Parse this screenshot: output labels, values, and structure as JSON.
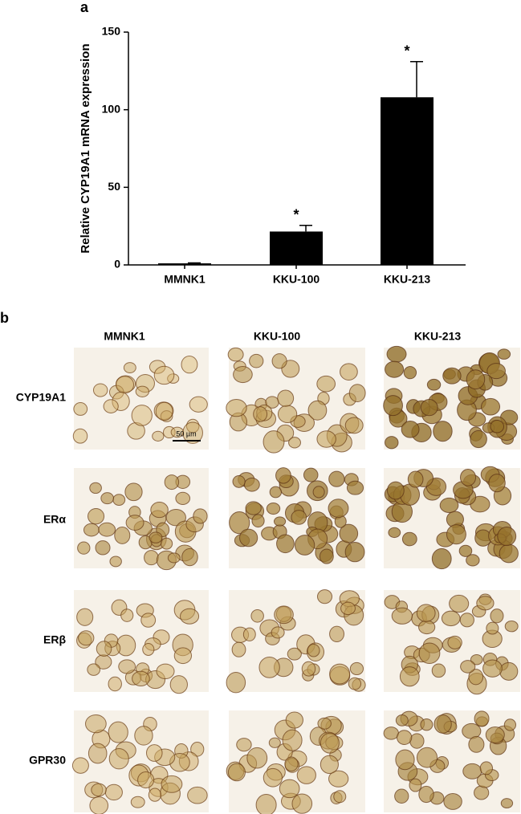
{
  "chart_data": {
    "type": "bar",
    "panel_label": "a",
    "ylabel": "Relative CYP19A1 mRNA expression",
    "categories": [
      "MMNK1",
      "KKU-100",
      "KKU-213"
    ],
    "values": [
      1,
      21.5,
      108
    ],
    "errors": [
      0.3,
      4,
      23
    ],
    "significance": [
      null,
      "*",
      "*"
    ],
    "color": "#000000",
    "ylim": [
      0,
      150
    ],
    "yticks": [
      0,
      50,
      100,
      150
    ],
    "grid": false
  },
  "panel_b": {
    "panel_label": "b",
    "columns": [
      "MMNK1",
      "KKU-100",
      "KKU-213"
    ],
    "rows": [
      "CYP19A1",
      "ERα",
      "ERβ",
      "GPR30"
    ],
    "scale_bar": "50 µm"
  }
}
